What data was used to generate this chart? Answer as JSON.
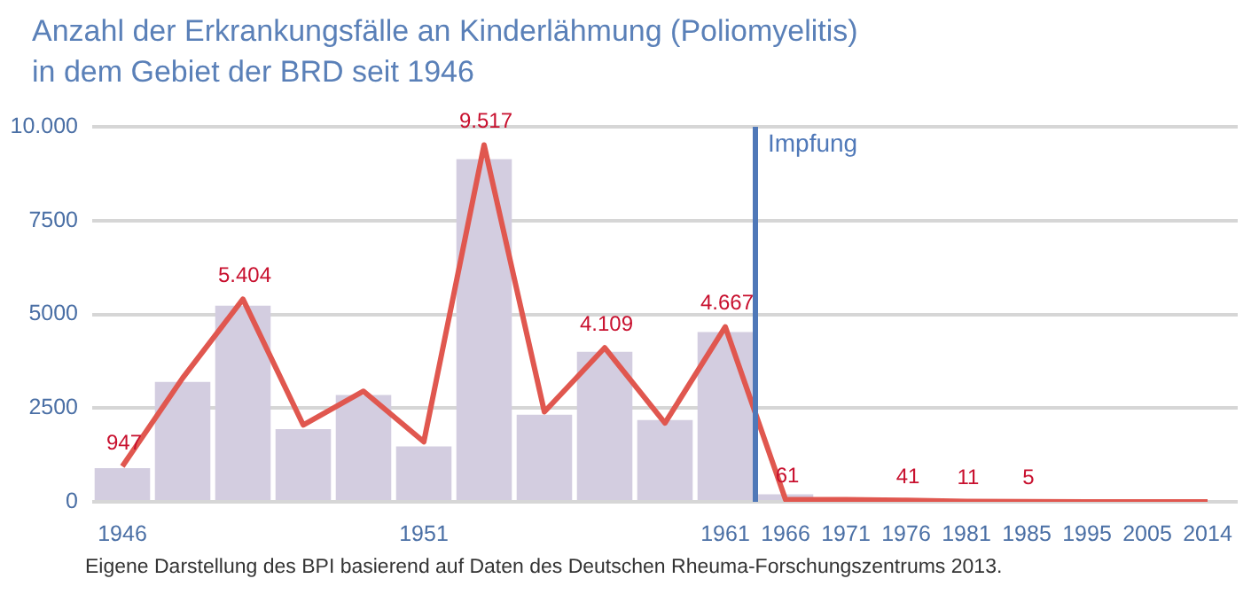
{
  "chart_data": {
    "type": "bar",
    "title": "Anzahl der Erkrankungsfälle an Kinderlähmung (Poliomyelitis)\nin dem Gebiet der BRD seit 1946",
    "categories": [
      "1946",
      null,
      null,
      null,
      null,
      "1951",
      null,
      null,
      null,
      null,
      "1961",
      "1966",
      "1971",
      "1976",
      "1981",
      "1985",
      "1995",
      "2005",
      "2014"
    ],
    "series": [
      {
        "color": "#d3cde0",
        "values": [
          900,
          3200,
          5230,
          1940,
          2850,
          1480,
          9140,
          2320,
          4000,
          2180,
          4530,
          200,
          null,
          null,
          null,
          null,
          null,
          null,
          null
        ]
      },
      {
        "type": "line",
        "color": "#e0574f",
        "values": [
          947,
          3300,
          5404,
          2050,
          2950,
          1600,
          9517,
          2400,
          4109,
          2100,
          4667,
          61,
          60,
          41,
          11,
          5,
          0,
          0,
          0
        ],
        "value_labels": [
          "947",
          null,
          "5.404",
          null,
          null,
          null,
          "9.517",
          null,
          "4.109",
          null,
          "4.667",
          "61",
          null,
          "41",
          "11",
          "5",
          null,
          null,
          null
        ]
      }
    ],
    "ylim": [
      0,
      10000
    ],
    "yticks": [
      0,
      2500,
      5000,
      7500,
      {
        "value": 10000,
        "label": "10.000"
      }
    ],
    "grid": "y",
    "legend": false,
    "marker": "none",
    "ref_lines": [
      {
        "axis": "x",
        "value": "1966",
        "label": "Impfung",
        "color": "#4f78b8"
      }
    ],
    "annotations": [
      "Eigene Darstellung des BPI basierend auf Daten des Deutschen Rheuma-Forschungszentrums 2013."
    ]
  }
}
